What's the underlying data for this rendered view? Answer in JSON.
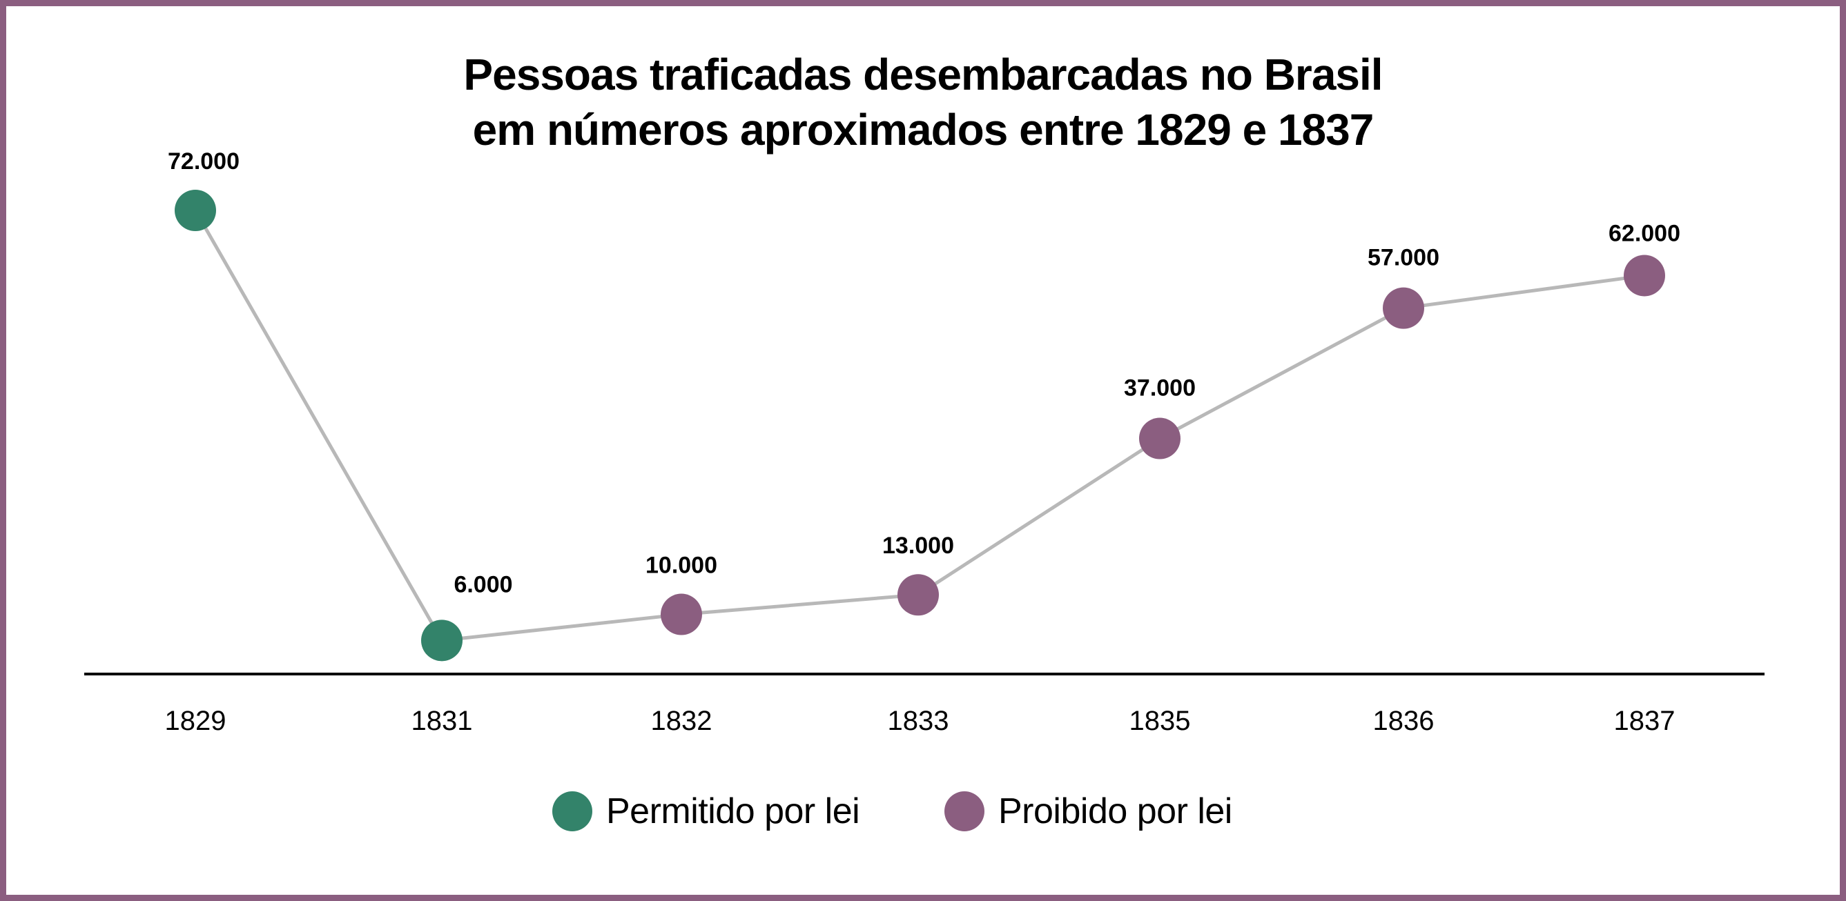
{
  "chart_data": {
    "type": "line",
    "title": "Pessoas traficadas desembarcadas no Brasil em números aproximados entre 1829 e 1837",
    "title_lines": [
      "Pessoas traficadas desembarcadas no Brasil",
      "em números aproximados entre 1829 e 1837"
    ],
    "categories": [
      "1829",
      "1831",
      "1832",
      "1833",
      "1835",
      "1836",
      "1837"
    ],
    "values": [
      72000,
      6000,
      10000,
      13000,
      37000,
      57000,
      62000
    ],
    "data_labels": [
      "72.000",
      "6.000",
      "10.000",
      "13.000",
      "37.000",
      "57.000",
      "62.000"
    ],
    "point_status": [
      "permitido",
      "permitido",
      "proibido",
      "proibido",
      "proibido",
      "proibido",
      "proibido"
    ],
    "xlabel": "",
    "ylabel": "",
    "ylim": [
      0,
      72000
    ],
    "grid": false,
    "legend_position": "bottom-center",
    "legend": [
      {
        "key": "permitido",
        "label": "Permitido por lei",
        "color": "#33836a"
      },
      {
        "key": "proibido",
        "label": "Proibido por lei",
        "color": "#8b5e80"
      }
    ],
    "line_color": "#b8b8b8",
    "axis_color": "#000000",
    "frame_color": "#8b5e80"
  }
}
